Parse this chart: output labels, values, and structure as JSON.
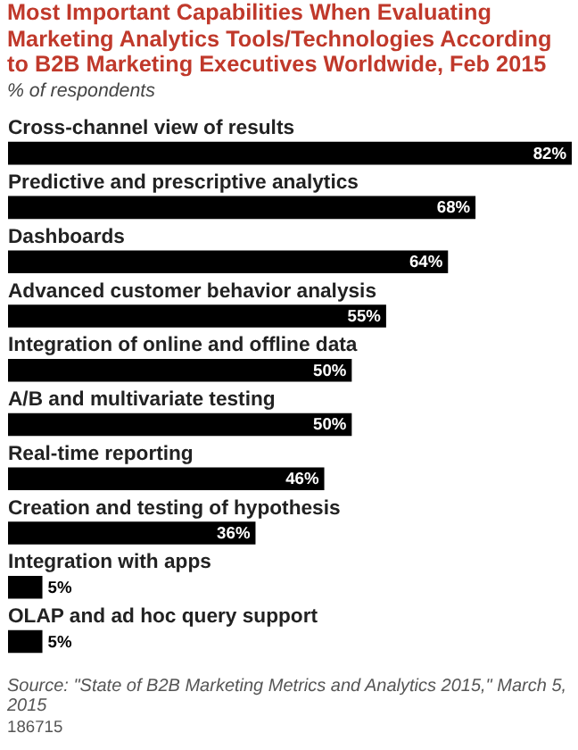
{
  "chart_data": {
    "type": "bar",
    "orientation": "horizontal",
    "title": "Most Important Capabilities When Evaluating Marketing Analytics Tools/Technologies According to B2B Marketing Executives Worldwide, Feb 2015",
    "subtitle": "% of respondents",
    "categories": [
      "Cross-channel view of results",
      "Predictive and prescriptive analytics",
      "Dashboards",
      "Advanced customer behavior analysis",
      "Integration of online and offline data",
      "A/B and multivariate testing",
      "Real-time reporting",
      "Creation and testing of hypothesis",
      "Integration with apps",
      "OLAP and ad hoc query support"
    ],
    "values": [
      82,
      68,
      64,
      55,
      50,
      50,
      46,
      36,
      5,
      5
    ],
    "value_labels": [
      "82%",
      "68%",
      "64%",
      "55%",
      "50%",
      "50%",
      "46%",
      "36%",
      "5%",
      "5%"
    ],
    "color": "#000000",
    "annotations": [
      "Source: \"State of B2B Marketing Metrics and Analytics 2015,\" March 5, 2015",
      "186715"
    ]
  }
}
